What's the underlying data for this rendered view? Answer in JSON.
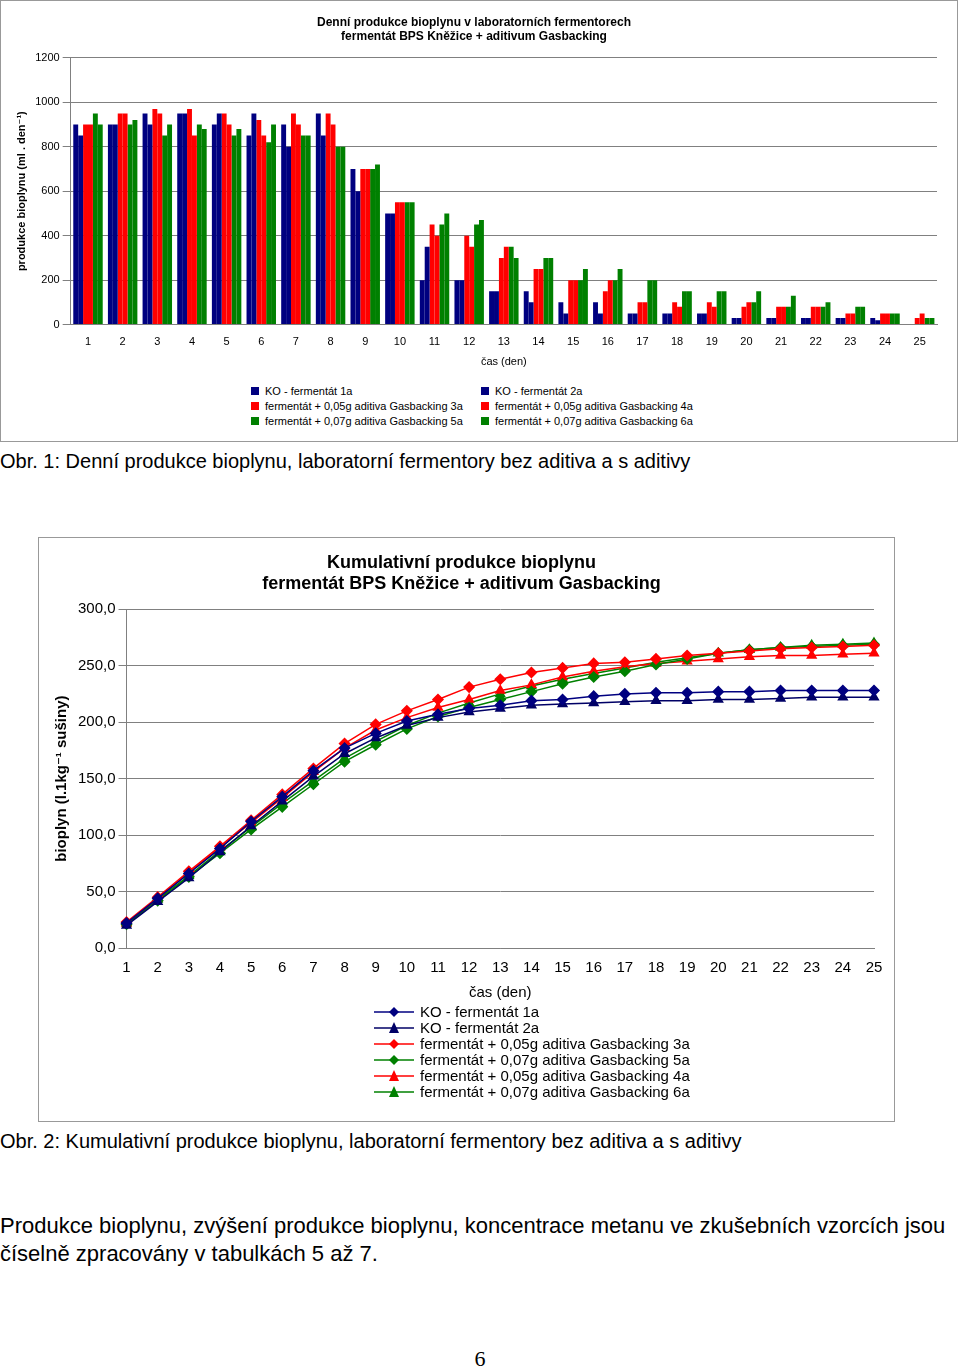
{
  "chart_data": [
    {
      "type": "bar",
      "title": "Denní produkce bioplynu v laboratorních fermentorech\nfermentát BPS Kněžice + aditivum Gasbacking",
      "x_label": "čas (den)",
      "y_label": "produkce bioplynu (ml . den⁻¹)",
      "categories": [
        "1",
        "2",
        "3",
        "4",
        "5",
        "6",
        "7",
        "8",
        "9",
        "10",
        "11",
        "12",
        "13",
        "14",
        "15",
        "16",
        "17",
        "18",
        "19",
        "20",
        "21",
        "22",
        "23",
        "24",
        "25"
      ],
      "series": [
        {
          "name": "KO - fermentát 1a",
          "color": "#000080",
          "values": [
            900,
            900,
            950,
            950,
            900,
            850,
            900,
            950,
            700,
            500,
            200,
            200,
            150,
            150,
            100,
            100,
            50,
            50,
            50,
            30,
            30,
            30,
            30,
            30,
            0
          ]
        },
        {
          "name": "KO - fermentát 2a",
          "color": "#000080",
          "values": [
            850,
            900,
            900,
            950,
            950,
            950,
            800,
            850,
            600,
            500,
            350,
            200,
            150,
            100,
            50,
            50,
            50,
            50,
            50,
            30,
            30,
            30,
            30,
            20,
            0
          ]
        },
        {
          "name": "fermentát + 0,05g aditiva Gasbacking 3a",
          "color": "#ff0000",
          "values": [
            900,
            950,
            970,
            970,
            950,
            920,
            950,
            950,
            700,
            550,
            450,
            400,
            300,
            250,
            200,
            150,
            100,
            100,
            100,
            80,
            80,
            80,
            50,
            50,
            30
          ]
        },
        {
          "name": "fermentát + 0,05g aditiva Gasbacking 4a",
          "color": "#ff0000",
          "values": [
            900,
            950,
            950,
            850,
            900,
            850,
            900,
            900,
            700,
            550,
            400,
            350,
            350,
            250,
            200,
            200,
            100,
            80,
            80,
            100,
            80,
            80,
            50,
            50,
            50
          ]
        },
        {
          "name": "fermentát + 0,07g aditiva Gasbacking 5a",
          "color": "#008000",
          "values": [
            950,
            900,
            850,
            900,
            850,
            820,
            850,
            800,
            700,
            550,
            450,
            450,
            350,
            300,
            200,
            200,
            200,
            150,
            150,
            100,
            80,
            80,
            80,
            50,
            30
          ]
        },
        {
          "name": "fermentát + 0,07g aditiva Gasbacking 6a",
          "color": "#008000",
          "values": [
            900,
            920,
            900,
            880,
            880,
            900,
            850,
            800,
            720,
            550,
            500,
            470,
            300,
            300,
            250,
            250,
            200,
            150,
            150,
            150,
            130,
            100,
            80,
            50,
            30
          ]
        }
      ],
      "ylim": [
        0,
        1200
      ],
      "yticks": [
        0,
        200,
        400,
        600,
        800,
        1000,
        1200
      ],
      "grid": true,
      "legend": "bottom"
    },
    {
      "type": "line",
      "title": "Kumulativní produkce bioplynu\nfermentát BPS Kněžice + aditivum Gasbacking",
      "x_label": "čas (den)",
      "y_label": "bioplyn (l.1kg⁻¹ sušiny)",
      "categories": [
        "1",
        "2",
        "3",
        "4",
        "5",
        "6",
        "7",
        "8",
        "9",
        "10",
        "11",
        "12",
        "13",
        "14",
        "15",
        "16",
        "17",
        "18",
        "19",
        "20",
        "21",
        "22",
        "23",
        "24",
        "25"
      ],
      "series": [
        {
          "name": "KO - fermentát 1a",
          "color": "#000080",
          "marker": "diamond",
          "values": [
            22,
            44,
            66,
            88,
            112,
            134,
            157,
            177,
            190,
            201,
            207,
            212,
            215,
            219,
            220,
            223,
            225,
            226,
            226,
            227,
            227,
            228,
            228,
            228,
            228
          ]
        },
        {
          "name": "KO - fermentát 2a",
          "color": "#000066",
          "marker": "triangle",
          "values": [
            20,
            41,
            62,
            85,
            108,
            130,
            152,
            172,
            186,
            197,
            204,
            209,
            212,
            215,
            216,
            217,
            218,
            219,
            219,
            220,
            220,
            221,
            222,
            222,
            222
          ]
        },
        {
          "name": "fermentát + 0,05g aditiva Gasbacking 3a",
          "color": "#ff0000",
          "marker": "diamond",
          "values": [
            23,
            45,
            68,
            90,
            113,
            136,
            159,
            181,
            198,
            210,
            220,
            231,
            238,
            244,
            248,
            252,
            253,
            256,
            259,
            261,
            263,
            265,
            266,
            267,
            268
          ]
        },
        {
          "name": "fermentát + 0,07g aditiva Gasbacking 5a",
          "color": "#008000",
          "marker": "diamond",
          "values": [
            21,
            42,
            63,
            84,
            105,
            125,
            145,
            165,
            180,
            194,
            205,
            213,
            220,
            227,
            234,
            240,
            245,
            251,
            256,
            261,
            264,
            266,
            267,
            268,
            269
          ]
        },
        {
          "name": "fermentát + 0,05g aditiva Gasbacking 4a",
          "color": "#ff0000",
          "marker": "triangle",
          "values": [
            22,
            44,
            67,
            89,
            111,
            133,
            156,
            177,
            193,
            204,
            213,
            220,
            228,
            233,
            240,
            245,
            249,
            252,
            254,
            256,
            258,
            259,
            259,
            260,
            261
          ]
        },
        {
          "name": "fermentát + 0,07g  aditiva Gasbacking 6a",
          "color": "#008000",
          "marker": "triangle",
          "values": [
            22,
            43,
            64,
            86,
            107,
            128,
            148,
            168,
            183,
            197,
            208,
            217,
            225,
            232,
            238,
            243,
            248,
            253,
            257,
            261,
            264,
            266,
            268,
            269,
            270
          ]
        }
      ],
      "ylim": [
        0,
        300
      ],
      "yticks": [
        {
          "value": 0,
          "label": "0,0"
        },
        {
          "value": 50,
          "label": "50,0"
        },
        {
          "value": 100,
          "label": "100,0"
        },
        {
          "value": 150,
          "label": "150,0"
        },
        {
          "value": 200,
          "label": "200,0"
        },
        {
          "value": 250,
          "label": "250,0"
        },
        {
          "value": 300,
          "label": "300,0"
        }
      ],
      "grid": true,
      "legend": "bottom"
    }
  ],
  "captions": [
    "Obr. 1: Denní produkce bioplynu, laboratorní fermentory bez aditiva a s aditivy",
    "Obr. 2: Kumulativní produkce bioplynu, laboratorní fermentory bez aditiva a s aditivy"
  ],
  "paragraph": "Produkce bioplynu, zvýšení produkce bioplynu, koncentrace metanu ve zkušebních vzorcích jsou číselně zpracovány v tabulkách 5 až 7.",
  "page_number": "6"
}
